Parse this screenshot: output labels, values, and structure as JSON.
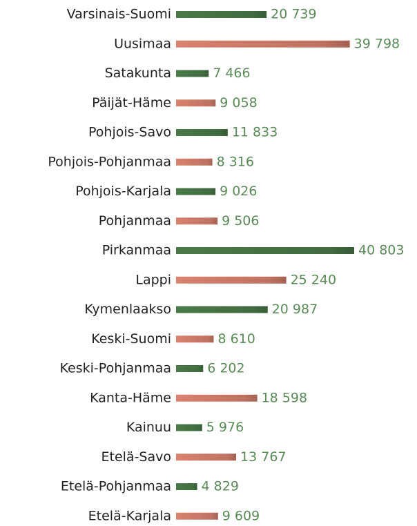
{
  "chart_data": {
    "type": "bar",
    "orientation": "horizontal",
    "categories": [
      "Varsinais-Suomi",
      "Uusimaa",
      "Satakunta",
      "Päijät-Häme",
      "Pohjois-Savo",
      "Pohjois-Pohjanmaa",
      "Pohjois-Karjala",
      "Pohjanmaa",
      "Pirkanmaa",
      "Lappi",
      "Kymenlaakso",
      "Keski-Suomi",
      "Keski-Pohjanmaa",
      "Kanta-Häme",
      "Kainuu",
      "Etelä-Savo",
      "Etelä-Pohjanmaa",
      "Etelä-Karjala"
    ],
    "values": [
      20739,
      39798,
      7466,
      9058,
      11833,
      8316,
      9026,
      9506,
      40803,
      25240,
      20987,
      8610,
      6202,
      18598,
      5976,
      13767,
      4829,
      9609
    ],
    "value_labels": [
      "20 739",
      "39 798",
      "7 466",
      "9 058",
      "11 833",
      "8 316",
      "9 026",
      "9 506",
      "40 803",
      "25 240",
      "20 987",
      "8 610",
      "6 202",
      "18 598",
      "5 976",
      "13 767",
      "4 829",
      "9 609"
    ],
    "colors": [
      "#4a7a48",
      "#d9826f",
      "#4a7a48",
      "#d9826f",
      "#4a7a48",
      "#d9826f",
      "#4a7a48",
      "#d9826f",
      "#4a7a48",
      "#d9826f",
      "#4a7a48",
      "#d9826f",
      "#4a7a48",
      "#d9826f",
      "#4a7a48",
      "#d9826f",
      "#4a7a48",
      "#d9826f"
    ]
  }
}
